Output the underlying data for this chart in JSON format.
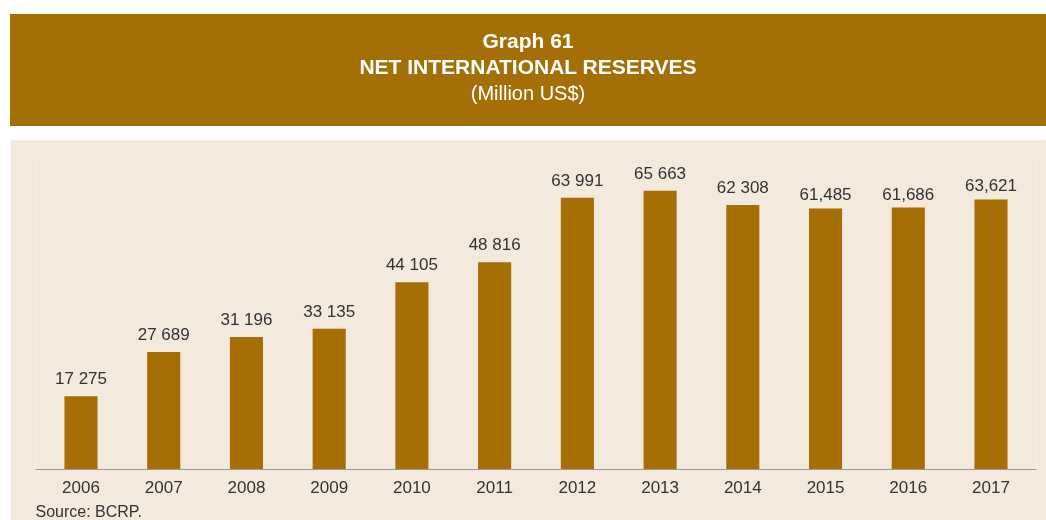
{
  "chart_data": {
    "type": "bar",
    "title": "Graph 61\nNET INTERNATIONAL RESERVES",
    "subtitle": "(Million US$)",
    "categories": [
      "2006",
      "2007",
      "2008",
      "2009",
      "2010",
      "2011",
      "2012",
      "2013",
      "2014",
      "2015",
      "2016",
      "2017"
    ],
    "values": [
      17275,
      27689,
      31196,
      33135,
      44105,
      48816,
      63991,
      65663,
      62308,
      61485,
      61686,
      63621
    ],
    "value_labels": [
      "17 275",
      "27 689",
      "31 196",
      "33 135",
      "44 105",
      "48 816",
      "63 991",
      "65 663",
      "62 308",
      "61,485",
      "61,686",
      "63,621"
    ],
    "color": "#a66f06",
    "annotations": [
      "Source: BCRP."
    ],
    "grid": false
  }
}
